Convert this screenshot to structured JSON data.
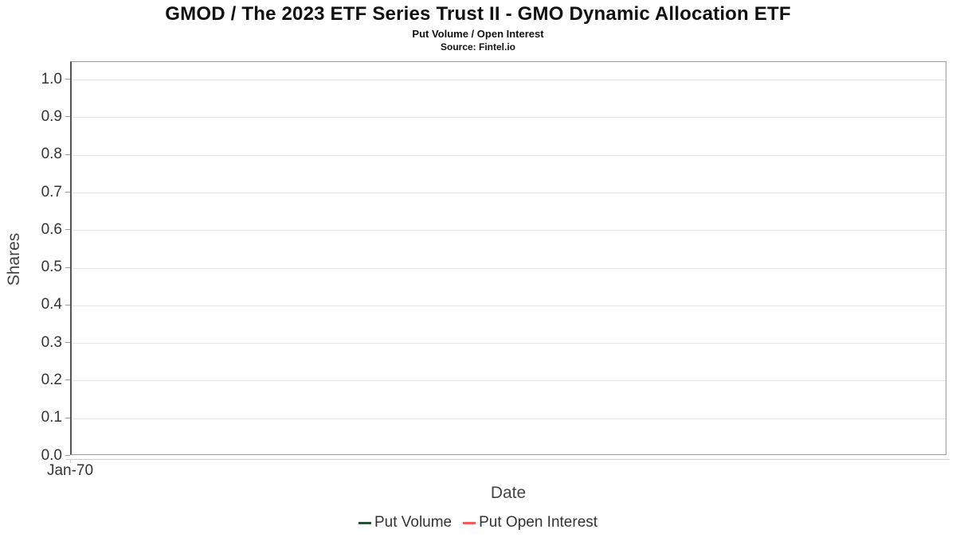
{
  "chart": {
    "title": "GMOD / The 2023 ETF Series Trust II - GMO Dynamic Allocation ETF",
    "subtitle": "Put Volume / Open Interest",
    "source": "Source: Fintel.io",
    "xlabel": "Date",
    "ylabel": "Shares",
    "x_first_tick": "Jan-70"
  },
  "chart_data": {
    "type": "line",
    "title": "GMOD / The 2023 ETF Series Trust II - GMO Dynamic Allocation ETF",
    "subtitle": "Put Volume / Open Interest",
    "source": "Source: Fintel.io",
    "xlabel": "Date",
    "ylabel": "Shares",
    "x_tick_labels": [
      "Jan-70"
    ],
    "y_tick_labels": [
      "0.0",
      "0.1",
      "0.2",
      "0.3",
      "0.4",
      "0.5",
      "0.6",
      "0.7",
      "0.8",
      "0.9",
      "1.0"
    ],
    "ylim": [
      0.0,
      1.047
    ],
    "grid": true,
    "legend_position": "bottom-center",
    "series": [
      {
        "name": "Put Volume",
        "color": "#1e5631",
        "x": [],
        "values": []
      },
      {
        "name": "Put Open Interest",
        "color": "#fd5a57",
        "x": [],
        "values": []
      }
    ],
    "note_empty_plot": true
  },
  "colors": {
    "plot_border": "#9a9a9a",
    "y_axis_line": "#555555",
    "x_axis_line": "#cccccc",
    "gridline": "#e6e6e6",
    "tick_text": "#333333",
    "axis_title_text": "#444444",
    "title_text": "#111111"
  }
}
